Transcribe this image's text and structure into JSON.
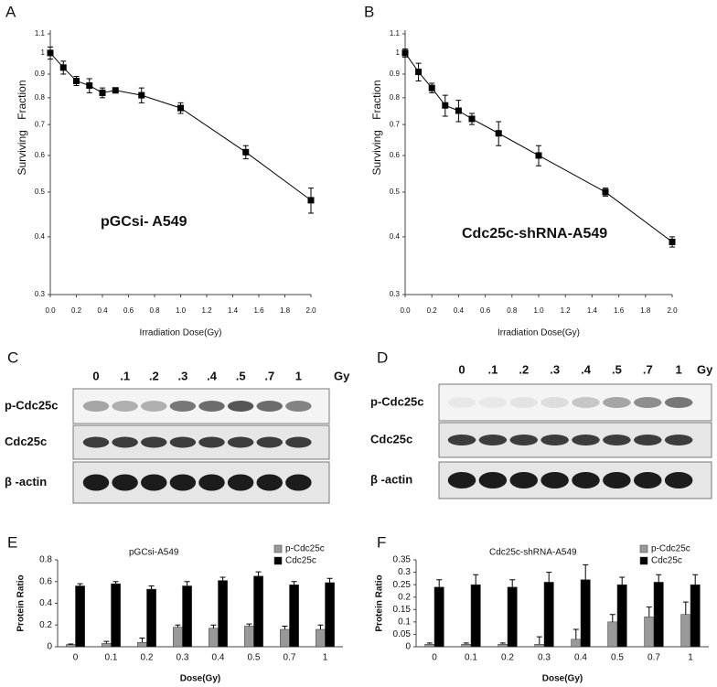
{
  "chart_data": [
    {
      "type": "line",
      "panel": "A",
      "annotation": "pGCsi- A549",
      "xlabel": "Irradiation Dose(Gy)",
      "ylabel": "Surviving Fraction",
      "x": [
        0,
        0.1,
        0.2,
        0.3,
        0.4,
        0.5,
        0.7,
        1.0,
        1.5,
        2.0
      ],
      "series": [
        {
          "color": "#000000",
          "values": [
            1.0,
            0.93,
            0.87,
            0.85,
            0.82,
            0.83,
            0.81,
            0.76,
            0.61,
            0.48
          ],
          "errors": [
            0.03,
            0.03,
            0.02,
            0.03,
            0.02,
            0.01,
            0.03,
            0.02,
            0.02,
            0.03
          ]
        }
      ],
      "xlim": [
        0,
        2.0
      ],
      "ylim": [
        0.3,
        1.1
      ],
      "log_y": true,
      "xticks": [
        {
          "value": 0,
          "label": "0.0"
        },
        0.2,
        0.4,
        0.6,
        0.8,
        {
          "value": 1,
          "label": "1.0"
        },
        1.2,
        1.4,
        1.6,
        1.8,
        {
          "value": 2,
          "label": "2.0"
        }
      ],
      "yticks": [
        0.3,
        0.4,
        0.5,
        0.6,
        0.7,
        0.8,
        0.9,
        1,
        1.1
      ]
    },
    {
      "type": "line",
      "panel": "B",
      "annotation": "Cdc25c-shRNA-A549",
      "xlabel": "Irradiation Dose(Gy)",
      "ylabel": "Surviving Fraction",
      "x": [
        0,
        0.1,
        0.2,
        0.3,
        0.4,
        0.5,
        0.7,
        1.0,
        1.5,
        2.0
      ],
      "series": [
        {
          "color": "#000000",
          "values": [
            1.0,
            0.91,
            0.84,
            0.77,
            0.75,
            0.72,
            0.67,
            0.6,
            0.5,
            0.39
          ],
          "errors": [
            0.02,
            0.04,
            0.02,
            0.04,
            0.04,
            0.02,
            0.04,
            0.03,
            0.01,
            0.01
          ]
        }
      ],
      "xlim": [
        0,
        2.0
      ],
      "ylim": [
        0.3,
        1.1
      ],
      "log_y": true,
      "xticks": [
        {
          "value": 0,
          "label": "0.0"
        },
        0.2,
        0.4,
        0.6,
        0.8,
        {
          "value": 1,
          "label": "1.0"
        },
        1.2,
        1.4,
        1.6,
        1.8,
        {
          "value": 2,
          "label": "2.0"
        }
      ],
      "yticks": [
        0.3,
        0.4,
        0.5,
        0.6,
        0.7,
        0.8,
        0.9,
        1,
        1.1
      ]
    },
    {
      "type": "bar",
      "panel": "E",
      "title": "pGCsi-A549",
      "xlabel": "Dose(Gy)",
      "ylabel": "Protein Ratio",
      "categories": [
        "0",
        "0.1",
        "0.2",
        "0.3",
        "0.4",
        "0.5",
        "0.7",
        "1"
      ],
      "series": [
        {
          "name": "p-Cdc25c",
          "color": "#999999",
          "values": [
            0.02,
            0.03,
            0.04,
            0.18,
            0.17,
            0.19,
            0.16,
            0.16
          ],
          "errors": [
            0.005,
            0.02,
            0.04,
            0.02,
            0.03,
            0.02,
            0.03,
            0.04
          ]
        },
        {
          "name": "Cdc25c",
          "color": "#000000",
          "values": [
            0.56,
            0.58,
            0.53,
            0.56,
            0.61,
            0.65,
            0.57,
            0.59
          ],
          "errors": [
            0.02,
            0.02,
            0.03,
            0.04,
            0.03,
            0.04,
            0.03,
            0.04
          ]
        }
      ],
      "ylim": [
        0,
        0.8
      ],
      "yticks": [
        0,
        0.2,
        0.4,
        0.6,
        0.8
      ]
    },
    {
      "type": "bar",
      "panel": "F",
      "title": "Cdc25c-shRNA-A549",
      "xlabel": "Dose(Gy)",
      "ylabel": "Protein Ratio",
      "categories": [
        "0",
        "0.1",
        "0.2",
        "0.3",
        "0.4",
        "0.5",
        "0.7",
        "1"
      ],
      "series": [
        {
          "name": "p-Cdc25c",
          "color": "#999999",
          "values": [
            0.01,
            0.01,
            0.01,
            0.01,
            0.03,
            0.1,
            0.12,
            0.13
          ],
          "errors": [
            0.005,
            0.005,
            0.005,
            0.03,
            0.04,
            0.03,
            0.04,
            0.05
          ]
        },
        {
          "name": "Cdc25c",
          "color": "#000000",
          "values": [
            0.24,
            0.25,
            0.24,
            0.26,
            0.27,
            0.25,
            0.26,
            0.25
          ],
          "errors": [
            0.03,
            0.04,
            0.03,
            0.04,
            0.06,
            0.03,
            0.03,
            0.04
          ]
        }
      ],
      "ylim": [
        0,
        0.35
      ],
      "yticks": [
        0,
        0.05,
        0.1,
        0.15,
        0.2,
        0.25,
        0.3,
        0.35
      ]
    }
  ],
  "blots": [
    {
      "panel": "C",
      "lanes": [
        "0",
        ".1",
        ".2",
        ".3",
        ".4",
        ".5",
        ".7",
        "1"
      ],
      "unit": "Gy",
      "rows": [
        "p-Cdc25c",
        "Cdc25c",
        "β -actin"
      ]
    },
    {
      "panel": "D",
      "lanes": [
        "0",
        ".1",
        ".2",
        ".3",
        ".4",
        ".5",
        ".7",
        "1"
      ],
      "unit": "Gy",
      "rows": [
        "p-Cdc25c",
        "Cdc25c",
        "β -actin"
      ]
    }
  ]
}
